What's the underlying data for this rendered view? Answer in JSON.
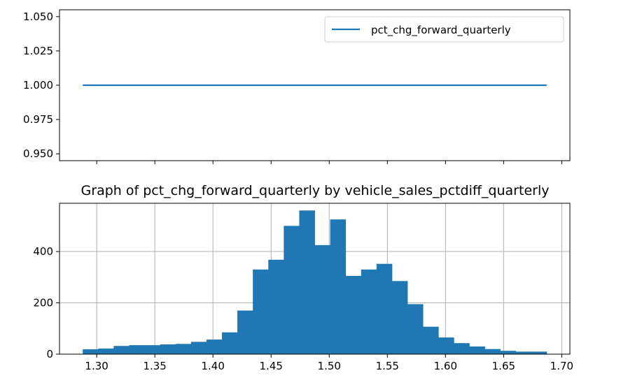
{
  "chart_data": [
    {
      "type": "line",
      "title": "",
      "xlabel": "",
      "ylabel": "",
      "series": [
        {
          "name": "pct_chg_forward_quarterly",
          "x": [
            1.288,
            1.687
          ],
          "y": [
            1.0,
            1.0
          ],
          "color": "#1f77b4"
        }
      ],
      "xlim": [
        1.268,
        1.707
      ],
      "ylim": [
        0.945,
        1.055
      ],
      "yticks": [
        0.95,
        0.975,
        1.0,
        1.025,
        1.05
      ],
      "ytick_labels": [
        "0.950",
        "0.975",
        "1.000",
        "1.025",
        "1.050"
      ],
      "xticks": [
        1.3,
        1.35,
        1.4,
        1.45,
        1.5,
        1.55,
        1.6,
        1.65,
        1.7
      ],
      "grid": false,
      "legend": "top-right",
      "shared_x_with_bottom": true
    },
    {
      "type": "bar",
      "title": "Graph of pct_chg_forward_quarterly by vehicle_sales_pctdiff_quarterly",
      "xlabel": "",
      "ylabel": "",
      "bin_start": 1.288,
      "bin_width": 0.0133,
      "values": [
        19,
        22,
        32,
        35,
        35,
        38,
        40,
        48,
        57,
        85,
        170,
        330,
        368,
        500,
        560,
        425,
        525,
        305,
        330,
        352,
        285,
        195,
        107,
        65,
        43,
        30,
        20,
        13,
        10,
        10
      ],
      "color": "#1f77b4",
      "xlim": [
        1.268,
        1.707
      ],
      "ylim": [
        0,
        588
      ],
      "xticks": [
        1.3,
        1.35,
        1.4,
        1.45,
        1.5,
        1.55,
        1.6,
        1.65,
        1.7
      ],
      "xtick_labels": [
        "1.30",
        "1.35",
        "1.40",
        "1.45",
        "1.50",
        "1.55",
        "1.60",
        "1.65",
        "1.70"
      ],
      "yticks": [
        0,
        200,
        400
      ],
      "ytick_labels": [
        "0",
        "200",
        "400"
      ],
      "grid": true
    }
  ]
}
